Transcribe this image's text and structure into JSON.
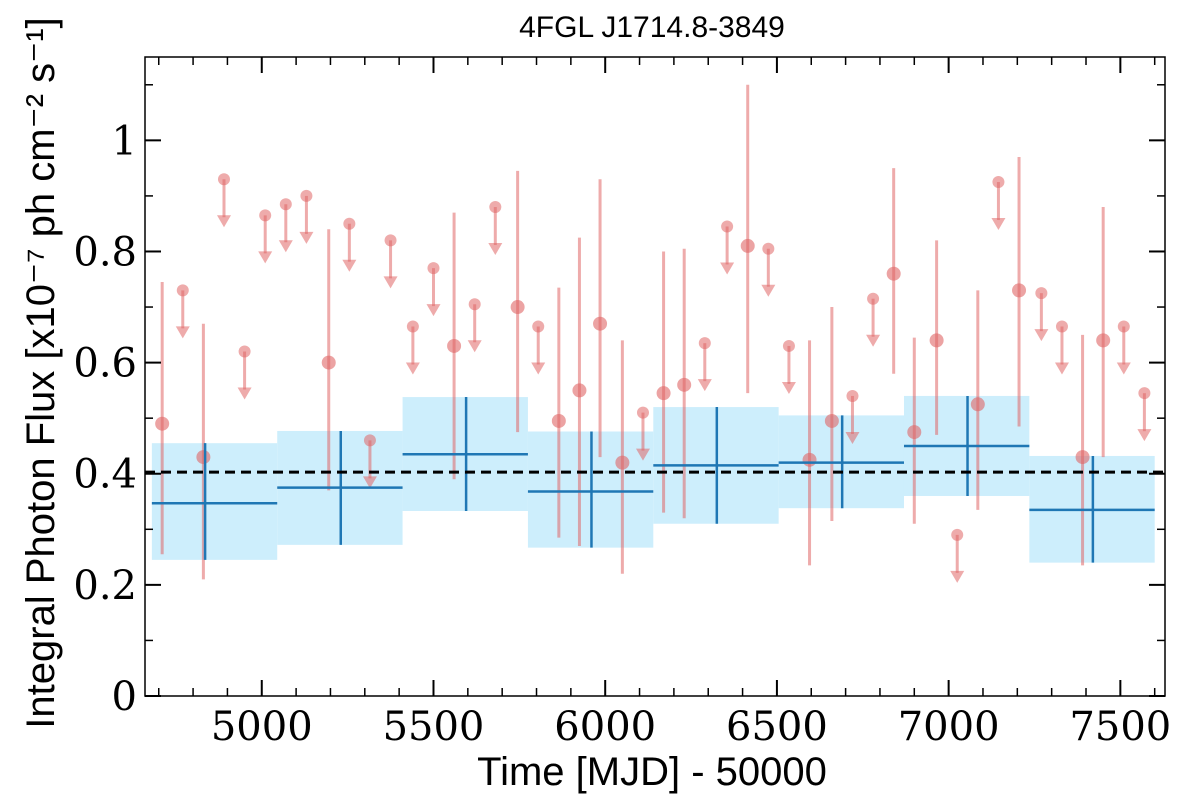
{
  "chart_data": {
    "type": "scatter",
    "title": "4FGL J1714.8-3849",
    "xlabel": "Time [MJD] - 50000",
    "ylabel": "Integral Photon Flux [x10⁻⁷ ph cm⁻² s⁻¹]",
    "xlim": [
      4660,
      7630
    ],
    "ylim": [
      0,
      1.15
    ],
    "x_ticks": [
      5000,
      5500,
      6000,
      6500,
      7000,
      7500
    ],
    "y_ticks": [
      0,
      0.2,
      0.4,
      0.6,
      0.8,
      1
    ],
    "x_tick_labels": [
      "5000",
      "5500",
      "6000",
      "6500",
      "7000",
      "7500"
    ],
    "y_tick_labels": [
      "0",
      "0.2",
      "0.4",
      "0.6",
      "0.8",
      "1"
    ],
    "grid": false,
    "mean_flux": 0.403,
    "colors": {
      "points": "#e06666",
      "bands": "#cdeefc",
      "bins": "#1f77b4",
      "mean_line": "#000000"
    },
    "short_bins": [
      {
        "x": 4710,
        "y": 0.49,
        "lo": 0.255,
        "hi": 0.745,
        "type": "detection"
      },
      {
        "x": 4770,
        "y": 0.73,
        "type": "upper_limit"
      },
      {
        "x": 4830,
        "y": 0.43,
        "lo": 0.21,
        "hi": 0.67,
        "type": "detection"
      },
      {
        "x": 4890,
        "y": 0.93,
        "type": "upper_limit"
      },
      {
        "x": 4950,
        "y": 0.62,
        "type": "upper_limit"
      },
      {
        "x": 5010,
        "y": 0.865,
        "type": "upper_limit"
      },
      {
        "x": 5070,
        "y": 0.885,
        "type": "upper_limit"
      },
      {
        "x": 5130,
        "y": 0.9,
        "type": "upper_limit"
      },
      {
        "x": 5195,
        "y": 0.6,
        "lo": 0.37,
        "hi": 0.84,
        "type": "detection"
      },
      {
        "x": 5255,
        "y": 0.85,
        "type": "upper_limit"
      },
      {
        "x": 5315,
        "y": 0.46,
        "type": "upper_limit"
      },
      {
        "x": 5375,
        "y": 0.82,
        "type": "upper_limit"
      },
      {
        "x": 5440,
        "y": 0.665,
        "type": "upper_limit"
      },
      {
        "x": 5500,
        "y": 0.77,
        "type": "upper_limit"
      },
      {
        "x": 5560,
        "y": 0.63,
        "lo": 0.39,
        "hi": 0.87,
        "type": "detection"
      },
      {
        "x": 5620,
        "y": 0.705,
        "type": "upper_limit"
      },
      {
        "x": 5680,
        "y": 0.88,
        "type": "upper_limit"
      },
      {
        "x": 5745,
        "y": 0.7,
        "lo": 0.475,
        "hi": 0.945,
        "type": "detection"
      },
      {
        "x": 5805,
        "y": 0.665,
        "type": "upper_limit"
      },
      {
        "x": 5865,
        "y": 0.495,
        "lo": 0.285,
        "hi": 0.735,
        "type": "detection"
      },
      {
        "x": 5925,
        "y": 0.55,
        "lo": 0.27,
        "hi": 0.825,
        "type": "detection"
      },
      {
        "x": 5985,
        "y": 0.67,
        "lo": 0.43,
        "hi": 0.93,
        "type": "detection"
      },
      {
        "x": 6050,
        "y": 0.42,
        "lo": 0.22,
        "hi": 0.64,
        "type": "detection"
      },
      {
        "x": 6110,
        "y": 0.51,
        "type": "upper_limit"
      },
      {
        "x": 6170,
        "y": 0.545,
        "lo": 0.33,
        "hi": 0.8,
        "type": "detection"
      },
      {
        "x": 6230,
        "y": 0.56,
        "lo": 0.32,
        "hi": 0.805,
        "type": "detection"
      },
      {
        "x": 6290,
        "y": 0.635,
        "type": "upper_limit"
      },
      {
        "x": 6355,
        "y": 0.845,
        "type": "upper_limit"
      },
      {
        "x": 6415,
        "y": 0.81,
        "lo": 0.545,
        "hi": 1.1,
        "type": "detection"
      },
      {
        "x": 6475,
        "y": 0.805,
        "type": "upper_limit"
      },
      {
        "x": 6535,
        "y": 0.63,
        "type": "upper_limit"
      },
      {
        "x": 6595,
        "y": 0.425,
        "lo": 0.235,
        "hi": 0.64,
        "type": "detection"
      },
      {
        "x": 6660,
        "y": 0.495,
        "lo": 0.315,
        "hi": 0.7,
        "type": "detection"
      },
      {
        "x": 6720,
        "y": 0.54,
        "type": "upper_limit"
      },
      {
        "x": 6780,
        "y": 0.715,
        "type": "upper_limit"
      },
      {
        "x": 6840,
        "y": 0.76,
        "lo": 0.58,
        "hi": 0.95,
        "type": "detection"
      },
      {
        "x": 6900,
        "y": 0.475,
        "lo": 0.31,
        "hi": 0.645,
        "type": "detection"
      },
      {
        "x": 6965,
        "y": 0.64,
        "lo": 0.47,
        "hi": 0.82,
        "type": "detection"
      },
      {
        "x": 7025,
        "y": 0.29,
        "type": "upper_limit"
      },
      {
        "x": 7085,
        "y": 0.525,
        "lo": 0.335,
        "hi": 0.73,
        "type": "detection"
      },
      {
        "x": 7145,
        "y": 0.925,
        "type": "upper_limit"
      },
      {
        "x": 7205,
        "y": 0.73,
        "lo": 0.485,
        "hi": 0.97,
        "type": "detection"
      },
      {
        "x": 7270,
        "y": 0.725,
        "type": "upper_limit"
      },
      {
        "x": 7330,
        "y": 0.665,
        "type": "upper_limit"
      },
      {
        "x": 7390,
        "y": 0.43,
        "lo": 0.235,
        "hi": 0.65,
        "type": "detection"
      },
      {
        "x": 7450,
        "y": 0.64,
        "lo": 0.43,
        "hi": 0.88,
        "type": "detection"
      },
      {
        "x": 7510,
        "y": 0.665,
        "type": "upper_limit"
      },
      {
        "x": 7570,
        "y": 0.545,
        "type": "upper_limit"
      }
    ],
    "long_bins": [
      {
        "x0": 4680,
        "x1": 5045,
        "xc": 4835,
        "y": 0.347,
        "band_lo": 0.245,
        "band_hi": 0.455,
        "err_lo": 0.245,
        "err_hi": 0.455
      },
      {
        "x0": 5045,
        "x1": 5410,
        "xc": 5230,
        "y": 0.375,
        "band_lo": 0.272,
        "band_hi": 0.477,
        "err_lo": 0.272,
        "err_hi": 0.477
      },
      {
        "x0": 5410,
        "x1": 5775,
        "xc": 5595,
        "y": 0.435,
        "band_lo": 0.333,
        "band_hi": 0.538,
        "err_lo": 0.333,
        "err_hi": 0.538
      },
      {
        "x0": 5775,
        "x1": 6140,
        "xc": 5960,
        "y": 0.368,
        "band_lo": 0.267,
        "band_hi": 0.476,
        "err_lo": 0.267,
        "err_hi": 0.476
      },
      {
        "x0": 6140,
        "x1": 6505,
        "xc": 6325,
        "y": 0.415,
        "band_lo": 0.31,
        "band_hi": 0.52,
        "err_lo": 0.31,
        "err_hi": 0.52
      },
      {
        "x0": 6505,
        "x1": 6870,
        "xc": 6690,
        "y": 0.42,
        "band_lo": 0.338,
        "band_hi": 0.505,
        "err_lo": 0.338,
        "err_hi": 0.505
      },
      {
        "x0": 6870,
        "x1": 7235,
        "xc": 7055,
        "y": 0.45,
        "band_lo": 0.36,
        "band_hi": 0.54,
        "err_lo": 0.36,
        "err_hi": 0.54
      },
      {
        "x0": 7235,
        "x1": 7600,
        "xc": 7420,
        "y": 0.335,
        "band_lo": 0.24,
        "band_hi": 0.432,
        "err_lo": 0.24,
        "err_hi": 0.432
      }
    ]
  }
}
